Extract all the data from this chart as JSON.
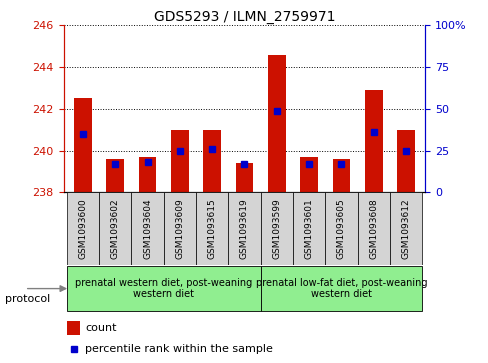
{
  "title": "GDS5293 / ILMN_2759971",
  "samples": [
    "GSM1093600",
    "GSM1093602",
    "GSM1093604",
    "GSM1093609",
    "GSM1093615",
    "GSM1093619",
    "GSM1093599",
    "GSM1093601",
    "GSM1093605",
    "GSM1093608",
    "GSM1093612"
  ],
  "count_values": [
    242.5,
    239.6,
    239.7,
    241.0,
    241.0,
    239.4,
    244.6,
    239.7,
    239.6,
    242.9,
    241.0
  ],
  "percentile_values": [
    35,
    17,
    18,
    25,
    26,
    17,
    49,
    17,
    17,
    36,
    25
  ],
  "ylim_left": [
    238,
    246
  ],
  "ylim_right": [
    0,
    100
  ],
  "yticks_left": [
    238,
    240,
    242,
    244,
    246
  ],
  "yticks_right": [
    0,
    25,
    50,
    75,
    100
  ],
  "bar_color": "#cc1100",
  "pct_color": "#0000cc",
  "group1_count": 6,
  "group2_count": 5,
  "group1_label": "prenatal western diet, post-weaning\nwestern diet",
  "group2_label": "prenatal low-fat diet, post-weaning\nwestern diet",
  "group1_bg": "#90ee90",
  "group2_bg": "#90ee90",
  "sample_bg": "#d4d4d4",
  "protocol_label": "protocol",
  "legend_count_label": "count",
  "legend_pct_label": "percentile rank within the sample",
  "bar_width": 0.55
}
